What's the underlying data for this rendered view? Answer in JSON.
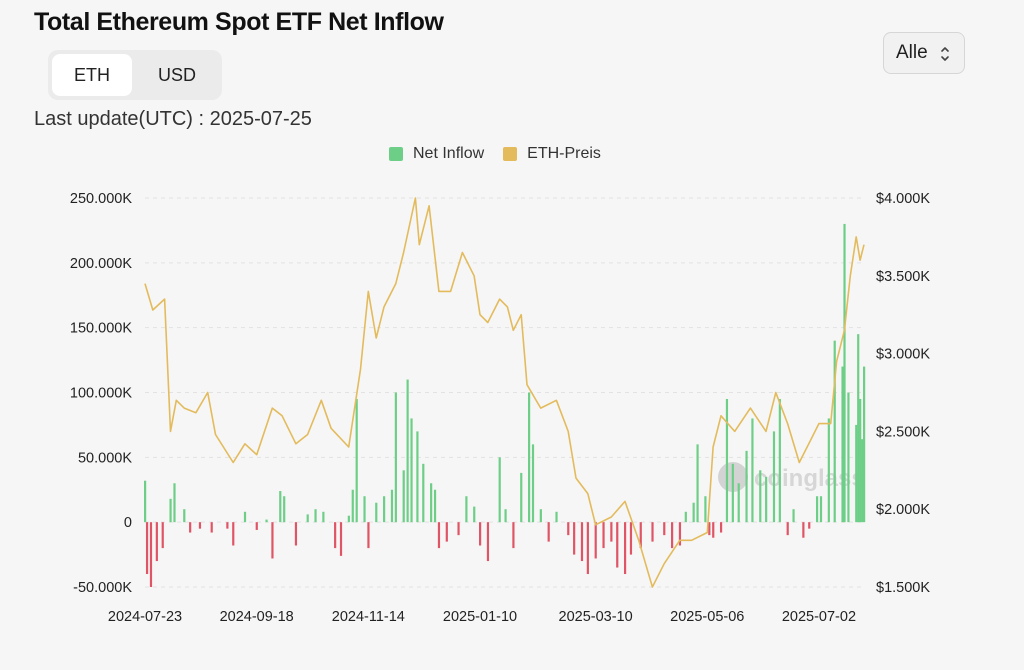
{
  "title": "Total Ethereum Spot ETF Net Inflow",
  "unit_toggle": {
    "options": [
      "ETH",
      "USD"
    ],
    "selected": "ETH"
  },
  "period_select": {
    "value": "Alle"
  },
  "last_update": "Last update(UTC) : 2025-07-25",
  "watermark": "coinglass",
  "colors": {
    "inflow": "#6dcf87",
    "outflow": "#e05565",
    "price": "#e3bb5c",
    "background": "#f6f6f6"
  },
  "legend": [
    {
      "name": "Net Inflow",
      "color": "#6dcf87"
    },
    {
      "name": "ETH-Preis",
      "color": "#e3bb5c"
    }
  ],
  "chart_data": {
    "type": "bar+line",
    "x_tick_labels": [
      "2024-07-23",
      "2024-09-18",
      "2024-11-14",
      "2025-01-10",
      "2025-03-10",
      "2025-05-06",
      "2025-07-02"
    ],
    "x_range": [
      "2024-07-23",
      "2025-07-25"
    ],
    "left_axis": {
      "label": "",
      "ticks": [
        "250.000K",
        "200.000K",
        "150.000K",
        "100.000K",
        "50.000K",
        "0",
        "-50.000K"
      ],
      "range": [
        -50000,
        250000
      ]
    },
    "right_axis": {
      "label": "",
      "ticks": [
        "$4.000K",
        "$3.500K",
        "$3.000K",
        "$2.500K",
        "$2.000K",
        "$1.500K"
      ],
      "range": [
        1500,
        4000
      ]
    },
    "series": [
      {
        "name": "Net Inflow",
        "axis": "left",
        "points": [
          [
            "2024-07-23",
            32000
          ],
          [
            "2024-07-24",
            -40000
          ],
          [
            "2024-07-26",
            -50000
          ],
          [
            "2024-07-29",
            -30000
          ],
          [
            "2024-08-01",
            -20000
          ],
          [
            "2024-08-05",
            18000
          ],
          [
            "2024-08-07",
            30000
          ],
          [
            "2024-08-12",
            10000
          ],
          [
            "2024-08-15",
            -8000
          ],
          [
            "2024-08-20",
            -5000
          ],
          [
            "2024-08-26",
            -8000
          ],
          [
            "2024-09-03",
            -5000
          ],
          [
            "2024-09-06",
            -18000
          ],
          [
            "2024-09-12",
            8000
          ],
          [
            "2024-09-18",
            -6000
          ],
          [
            "2024-09-23",
            2000
          ],
          [
            "2024-09-26",
            -28000
          ],
          [
            "2024-09-30",
            24000
          ],
          [
            "2024-10-02",
            20000
          ],
          [
            "2024-10-08",
            -18000
          ],
          [
            "2024-10-14",
            6000
          ],
          [
            "2024-10-18",
            10000
          ],
          [
            "2024-10-22",
            8000
          ],
          [
            "2024-10-28",
            -20000
          ],
          [
            "2024-10-31",
            -26000
          ],
          [
            "2024-11-04",
            5000
          ],
          [
            "2024-11-06",
            25000
          ],
          [
            "2024-11-08",
            95000
          ],
          [
            "2024-11-12",
            20000
          ],
          [
            "2024-11-14",
            -20000
          ],
          [
            "2024-11-18",
            15000
          ],
          [
            "2024-11-22",
            20000
          ],
          [
            "2024-11-26",
            25000
          ],
          [
            "2024-11-28",
            100000
          ],
          [
            "2024-12-02",
            40000
          ],
          [
            "2024-12-04",
            110000
          ],
          [
            "2024-12-06",
            80000
          ],
          [
            "2024-12-09",
            70000
          ],
          [
            "2024-12-12",
            45000
          ],
          [
            "2024-12-16",
            30000
          ],
          [
            "2024-12-18",
            25000
          ],
          [
            "2024-12-20",
            -20000
          ],
          [
            "2024-12-24",
            -15000
          ],
          [
            "2024-12-30",
            -10000
          ],
          [
            "2025-01-03",
            20000
          ],
          [
            "2025-01-07",
            12000
          ],
          [
            "2025-01-10",
            -18000
          ],
          [
            "2025-01-14",
            -30000
          ],
          [
            "2025-01-20",
            50000
          ],
          [
            "2025-01-23",
            10000
          ],
          [
            "2025-01-27",
            -20000
          ],
          [
            "2025-01-31",
            38000
          ],
          [
            "2025-02-04",
            100000
          ],
          [
            "2025-02-06",
            60000
          ],
          [
            "2025-02-10",
            10000
          ],
          [
            "2025-02-14",
            -15000
          ],
          [
            "2025-02-18",
            8000
          ],
          [
            "2025-02-24",
            -10000
          ],
          [
            "2025-02-27",
            -25000
          ],
          [
            "2025-03-03",
            -30000
          ],
          [
            "2025-03-06",
            -40000
          ],
          [
            "2025-03-10",
            -28000
          ],
          [
            "2025-03-14",
            -20000
          ],
          [
            "2025-03-18",
            -15000
          ],
          [
            "2025-03-21",
            -35000
          ],
          [
            "2025-03-25",
            -40000
          ],
          [
            "2025-03-28",
            -25000
          ],
          [
            "2025-04-02",
            -20000
          ],
          [
            "2025-04-08",
            -15000
          ],
          [
            "2025-04-14",
            -10000
          ],
          [
            "2025-04-18",
            -20000
          ],
          [
            "2025-04-22",
            -18000
          ],
          [
            "2025-04-25",
            8000
          ],
          [
            "2025-04-29",
            15000
          ],
          [
            "2025-05-01",
            60000
          ],
          [
            "2025-05-05",
            20000
          ],
          [
            "2025-05-07",
            -10000
          ],
          [
            "2025-05-09",
            -12000
          ],
          [
            "2025-05-13",
            -8000
          ],
          [
            "2025-05-16",
            95000
          ],
          [
            "2025-05-19",
            45000
          ],
          [
            "2025-05-22",
            30000
          ],
          [
            "2025-05-26",
            55000
          ],
          [
            "2025-05-29",
            80000
          ],
          [
            "2025-06-02",
            40000
          ],
          [
            "2025-06-05",
            35000
          ],
          [
            "2025-06-09",
            70000
          ],
          [
            "2025-06-12",
            95000
          ],
          [
            "2025-06-16",
            -10000
          ],
          [
            "2025-06-19",
            10000
          ],
          [
            "2025-06-24",
            -12000
          ],
          [
            "2025-06-27",
            -5000
          ],
          [
            "2025-07-01",
            20000
          ],
          [
            "2025-07-03",
            20000
          ],
          [
            "2025-07-07",
            80000
          ],
          [
            "2025-07-10",
            140000
          ],
          [
            "2025-07-14",
            120000
          ],
          [
            "2025-07-15",
            230000
          ],
          [
            "2025-07-17",
            100000
          ],
          [
            "2025-07-21",
            75000
          ],
          [
            "2025-07-22",
            145000
          ],
          [
            "2025-07-23",
            95000
          ],
          [
            "2025-07-24",
            64000
          ],
          [
            "2025-07-25",
            120000
          ]
        ]
      },
      {
        "name": "ETH-Preis",
        "axis": "right",
        "points": [
          [
            "2024-07-23",
            3450
          ],
          [
            "2024-07-27",
            3280
          ],
          [
            "2024-08-02",
            3350
          ],
          [
            "2024-08-05",
            2500
          ],
          [
            "2024-08-08",
            2700
          ],
          [
            "2024-08-12",
            2650
          ],
          [
            "2024-08-18",
            2620
          ],
          [
            "2024-08-24",
            2750
          ],
          [
            "2024-08-28",
            2480
          ],
          [
            "2024-09-06",
            2300
          ],
          [
            "2024-09-12",
            2420
          ],
          [
            "2024-09-18",
            2350
          ],
          [
            "2024-09-26",
            2650
          ],
          [
            "2024-10-01",
            2600
          ],
          [
            "2024-10-08",
            2420
          ],
          [
            "2024-10-14",
            2480
          ],
          [
            "2024-10-21",
            2700
          ],
          [
            "2024-10-26",
            2520
          ],
          [
            "2024-11-04",
            2400
          ],
          [
            "2024-11-10",
            2900
          ],
          [
            "2024-11-14",
            3400
          ],
          [
            "2024-11-18",
            3100
          ],
          [
            "2024-11-22",
            3300
          ],
          [
            "2024-11-28",
            3450
          ],
          [
            "2024-12-02",
            3650
          ],
          [
            "2024-12-08",
            4000
          ],
          [
            "2024-12-10",
            3700
          ],
          [
            "2024-12-15",
            3950
          ],
          [
            "2024-12-20",
            3400
          ],
          [
            "2024-12-26",
            3400
          ],
          [
            "2025-01-01",
            3650
          ],
          [
            "2025-01-07",
            3500
          ],
          [
            "2025-01-10",
            3250
          ],
          [
            "2025-01-14",
            3200
          ],
          [
            "2025-01-20",
            3350
          ],
          [
            "2025-01-24",
            3300
          ],
          [
            "2025-01-27",
            3150
          ],
          [
            "2025-01-31",
            3250
          ],
          [
            "2025-02-03",
            2800
          ],
          [
            "2025-02-10",
            2650
          ],
          [
            "2025-02-18",
            2700
          ],
          [
            "2025-02-24",
            2500
          ],
          [
            "2025-02-28",
            2200
          ],
          [
            "2025-03-06",
            2100
          ],
          [
            "2025-03-10",
            1900
          ],
          [
            "2025-03-18",
            1950
          ],
          [
            "2025-03-25",
            2050
          ],
          [
            "2025-04-01",
            1800
          ],
          [
            "2025-04-08",
            1500
          ],
          [
            "2025-04-14",
            1650
          ],
          [
            "2025-04-22",
            1800
          ],
          [
            "2025-04-28",
            1800
          ],
          [
            "2025-05-06",
            1850
          ],
          [
            "2025-05-09",
            2400
          ],
          [
            "2025-05-13",
            2600
          ],
          [
            "2025-05-20",
            2500
          ],
          [
            "2025-05-28",
            2650
          ],
          [
            "2025-06-05",
            2500
          ],
          [
            "2025-06-10",
            2750
          ],
          [
            "2025-06-16",
            2550
          ],
          [
            "2025-06-22",
            2300
          ],
          [
            "2025-06-28",
            2450
          ],
          [
            "2025-07-02",
            2550
          ],
          [
            "2025-07-08",
            2550
          ],
          [
            "2025-07-11",
            2950
          ],
          [
            "2025-07-15",
            3150
          ],
          [
            "2025-07-18",
            3500
          ],
          [
            "2025-07-21",
            3750
          ],
          [
            "2025-07-23",
            3600
          ],
          [
            "2025-07-25",
            3700
          ]
        ]
      }
    ],
    "grid": "horizontal dashed",
    "legend_position": "top-center"
  }
}
